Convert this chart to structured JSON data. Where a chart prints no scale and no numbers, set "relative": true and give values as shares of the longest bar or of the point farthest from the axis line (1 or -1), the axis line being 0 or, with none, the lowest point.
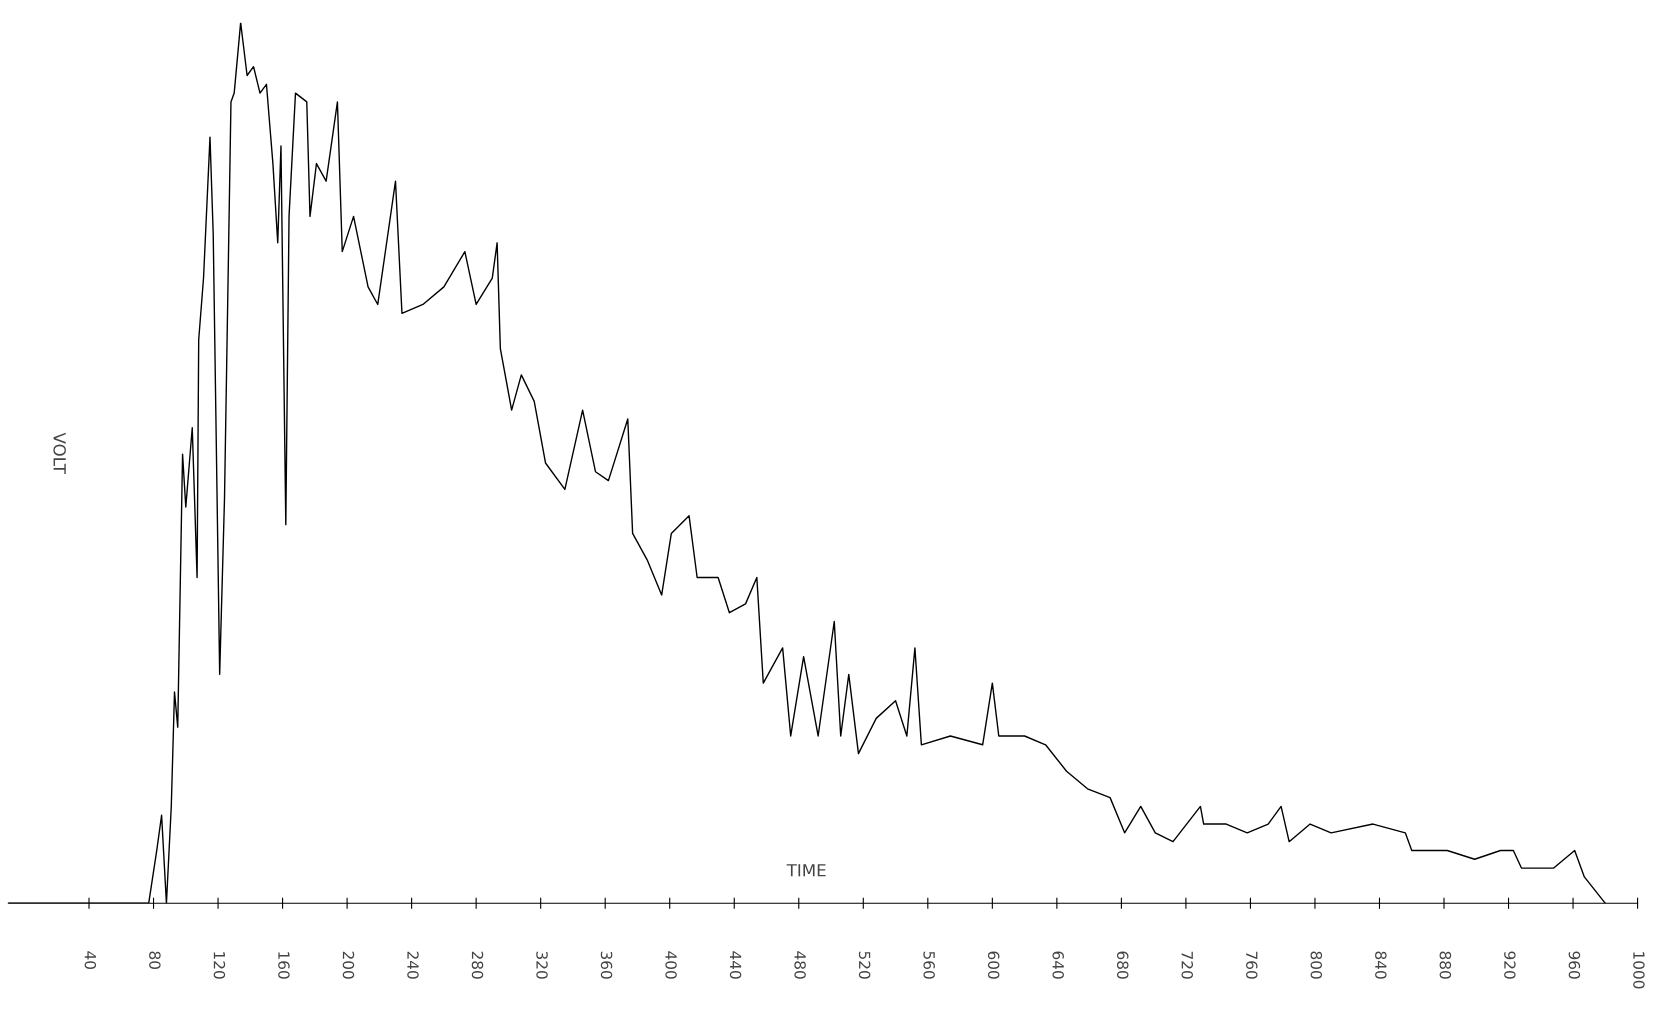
{
  "chart_data": {
    "type": "line",
    "relative": true,
    "xlabel": "TIME",
    "ylabel": "VOLT",
    "xlim": [
      -10,
      1000
    ],
    "xticks": [
      40,
      80,
      120,
      160,
      200,
      240,
      280,
      320,
      360,
      400,
      440,
      480,
      520,
      560,
      600,
      640,
      680,
      720,
      760,
      800,
      840,
      880,
      920,
      960,
      1000
    ],
    "grid": false,
    "legend": false,
    "marker": "none",
    "line_style": "solid",
    "series": [
      {
        "color": "#000000",
        "x": [
          -10,
          77,
          82,
          85,
          88,
          91,
          93,
          95,
          98,
          100,
          104,
          107,
          108,
          111,
          115,
          117,
          121,
          124,
          128,
          130,
          134,
          138,
          142,
          146,
          150,
          154,
          157,
          159,
          162,
          164,
          168,
          175,
          177,
          181,
          187,
          194,
          197,
          204,
          213,
          219,
          230,
          234,
          247,
          260,
          273,
          280,
          290,
          293,
          295,
          302,
          308,
          316,
          323,
          335,
          346,
          354,
          362,
          374,
          377,
          386,
          395,
          401,
          412,
          417,
          430,
          437,
          447,
          454,
          458,
          470,
          475,
          483,
          492,
          502,
          506,
          511,
          517,
          528,
          540,
          547,
          552,
          556,
          574,
          594,
          600,
          604,
          620,
          633,
          646,
          659,
          673,
          682,
          692,
          701,
          712,
          729,
          731,
          745,
          758,
          771,
          779,
          784,
          797,
          810,
          836,
          856,
          860,
          882,
          899,
          915,
          923,
          928,
          948,
          961,
          967,
          980
        ],
        "values": [
          0.0,
          0.0,
          0.06,
          0.1,
          0.0,
          0.11,
          0.24,
          0.2,
          0.51,
          0.45,
          0.54,
          0.37,
          0.64,
          0.71,
          0.87,
          0.76,
          0.26,
          0.46,
          0.91,
          0.92,
          1.0,
          0.94,
          0.95,
          0.92,
          0.93,
          0.84,
          0.75,
          0.86,
          0.43,
          0.78,
          0.92,
          0.91,
          0.78,
          0.84,
          0.82,
          0.91,
          0.74,
          0.78,
          0.7,
          0.68,
          0.82,
          0.67,
          0.68,
          0.7,
          0.74,
          0.68,
          0.71,
          0.75,
          0.63,
          0.56,
          0.6,
          0.57,
          0.5,
          0.47,
          0.56,
          0.49,
          0.48,
          0.55,
          0.42,
          0.39,
          0.35,
          0.42,
          0.44,
          0.37,
          0.37,
          0.33,
          0.34,
          0.37,
          0.25,
          0.29,
          0.19,
          0.28,
          0.19,
          0.32,
          0.19,
          0.26,
          0.17,
          0.21,
          0.23,
          0.19,
          0.29,
          0.18,
          0.19,
          0.18,
          0.25,
          0.19,
          0.19,
          0.18,
          0.15,
          0.13,
          0.12,
          0.08,
          0.11,
          0.08,
          0.07,
          0.11,
          0.09,
          0.09,
          0.08,
          0.09,
          0.11,
          0.07,
          0.09,
          0.08,
          0.09,
          0.08,
          0.06,
          0.06,
          0.05,
          0.06,
          0.06,
          0.04,
          0.04,
          0.06,
          0.03,
          0.0
        ]
      }
    ]
  }
}
